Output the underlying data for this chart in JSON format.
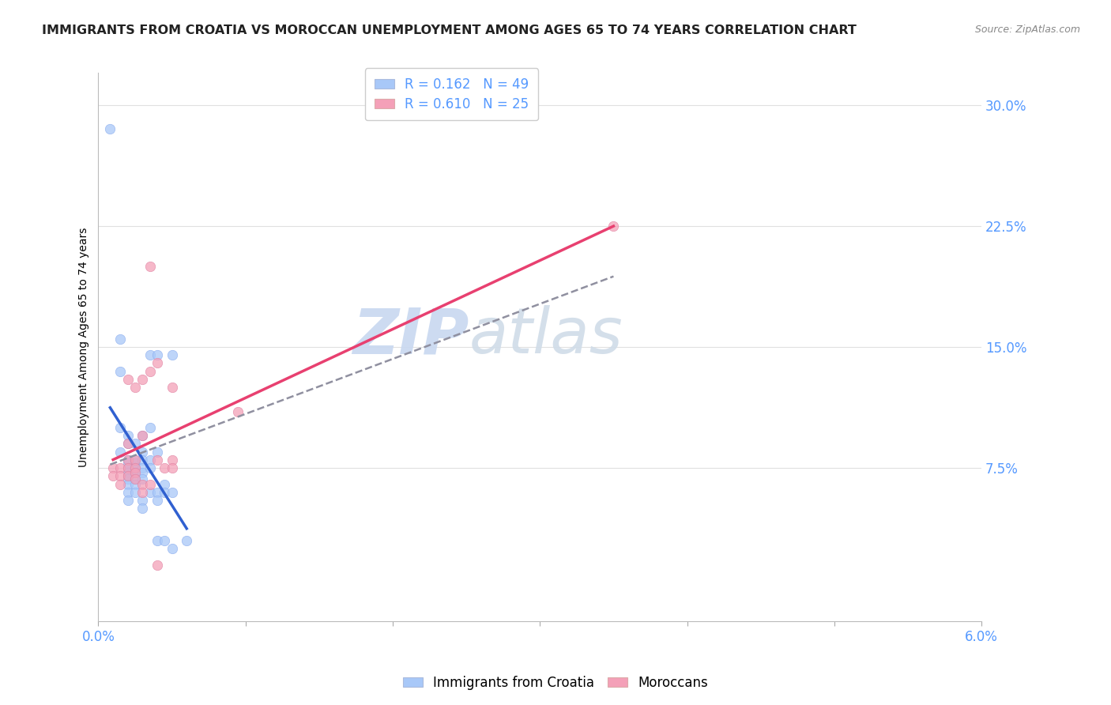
{
  "title": "IMMIGRANTS FROM CROATIA VS MOROCCAN UNEMPLOYMENT AMONG AGES 65 TO 74 YEARS CORRELATION CHART",
  "source": "Source: ZipAtlas.com",
  "ylabel": "Unemployment Among Ages 65 to 74 years",
  "xlim": [
    0.0,
    0.06
  ],
  "ylim": [
    -0.02,
    0.32
  ],
  "ytick_vals": [
    0.075,
    0.15,
    0.225,
    0.3
  ],
  "ytick_labels": [
    "7.5%",
    "15.0%",
    "22.5%",
    "30.0%"
  ],
  "xtick_vals": [
    0.0,
    0.01,
    0.02,
    0.03,
    0.04,
    0.05,
    0.06
  ],
  "xtick_labels": [
    "0.0%",
    "",
    "",
    "",
    "",
    "",
    "6.0%"
  ],
  "watermark_zip": "ZIP",
  "watermark_atlas": "atlas",
  "croatia_color": "#a8c8f8",
  "morocco_color": "#f4a0b8",
  "croatia_scatter": [
    [
      0.0008,
      0.285
    ],
    [
      0.0015,
      0.155
    ],
    [
      0.0015,
      0.135
    ],
    [
      0.0015,
      0.1
    ],
    [
      0.0015,
      0.085
    ],
    [
      0.002,
      0.095
    ],
    [
      0.002,
      0.09
    ],
    [
      0.002,
      0.08
    ],
    [
      0.002,
      0.078
    ],
    [
      0.002,
      0.075
    ],
    [
      0.002,
      0.072
    ],
    [
      0.002,
      0.07
    ],
    [
      0.002,
      0.068
    ],
    [
      0.002,
      0.065
    ],
    [
      0.002,
      0.06
    ],
    [
      0.002,
      0.055
    ],
    [
      0.0025,
      0.09
    ],
    [
      0.0025,
      0.08
    ],
    [
      0.0025,
      0.078
    ],
    [
      0.0025,
      0.075
    ],
    [
      0.0025,
      0.072
    ],
    [
      0.0025,
      0.068
    ],
    [
      0.0025,
      0.065
    ],
    [
      0.0025,
      0.06
    ],
    [
      0.003,
      0.095
    ],
    [
      0.003,
      0.085
    ],
    [
      0.003,
      0.08
    ],
    [
      0.003,
      0.075
    ],
    [
      0.003,
      0.072
    ],
    [
      0.003,
      0.068
    ],
    [
      0.003,
      0.055
    ],
    [
      0.003,
      0.05
    ],
    [
      0.0035,
      0.145
    ],
    [
      0.0035,
      0.1
    ],
    [
      0.0035,
      0.08
    ],
    [
      0.0035,
      0.075
    ],
    [
      0.0035,
      0.06
    ],
    [
      0.004,
      0.145
    ],
    [
      0.004,
      0.085
    ],
    [
      0.004,
      0.06
    ],
    [
      0.004,
      0.055
    ],
    [
      0.004,
      0.03
    ],
    [
      0.0045,
      0.065
    ],
    [
      0.0045,
      0.06
    ],
    [
      0.0045,
      0.03
    ],
    [
      0.005,
      0.145
    ],
    [
      0.005,
      0.06
    ],
    [
      0.005,
      0.025
    ],
    [
      0.006,
      0.03
    ]
  ],
  "morocco_scatter": [
    [
      0.001,
      0.075
    ],
    [
      0.001,
      0.07
    ],
    [
      0.0015,
      0.075
    ],
    [
      0.0015,
      0.07
    ],
    [
      0.0015,
      0.065
    ],
    [
      0.002,
      0.13
    ],
    [
      0.002,
      0.09
    ],
    [
      0.002,
      0.08
    ],
    [
      0.002,
      0.075
    ],
    [
      0.002,
      0.07
    ],
    [
      0.0025,
      0.125
    ],
    [
      0.0025,
      0.08
    ],
    [
      0.0025,
      0.075
    ],
    [
      0.0025,
      0.072
    ],
    [
      0.0025,
      0.068
    ],
    [
      0.003,
      0.13
    ],
    [
      0.003,
      0.095
    ],
    [
      0.003,
      0.065
    ],
    [
      0.003,
      0.06
    ],
    [
      0.0035,
      0.2
    ],
    [
      0.0035,
      0.135
    ],
    [
      0.0035,
      0.065
    ],
    [
      0.004,
      0.14
    ],
    [
      0.004,
      0.08
    ],
    [
      0.004,
      0.015
    ],
    [
      0.0045,
      0.075
    ],
    [
      0.005,
      0.125
    ],
    [
      0.005,
      0.08
    ],
    [
      0.005,
      0.075
    ],
    [
      0.0095,
      0.11
    ],
    [
      0.035,
      0.225
    ]
  ],
  "croatia_line_color": "#3060d0",
  "morocco_line_color": "#e84070",
  "trend_line_color": "#9090a0",
  "background_color": "#ffffff",
  "grid_color": "#e0e0e0",
  "axis_label_color": "#5599ff",
  "title_fontsize": 11.5,
  "label_fontsize": 10,
  "tick_fontsize": 12,
  "legend_fontsize": 12
}
